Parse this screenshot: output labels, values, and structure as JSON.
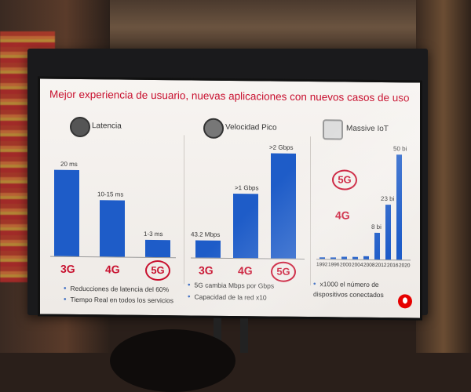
{
  "slide": {
    "title": "Mejor experiencia de usuario, nuevas aplicaciones con nuevos casos de uso"
  },
  "latency": {
    "title": "Latencia",
    "icon": "stopwatch-icon",
    "bars": [
      {
        "tech": "3G",
        "label": "20 ms"
      },
      {
        "tech": "4G",
        "label": "10-15 ms"
      },
      {
        "tech": "5G",
        "label": "1-3 ms"
      }
    ],
    "bullets": [
      "Reducciones de latencia del 60%",
      "Tiempo Real en todos los servicios"
    ]
  },
  "speed": {
    "title": "Velocidad Pico",
    "icon": "speedometer-icon",
    "bars": [
      {
        "tech": "3G",
        "label": "43.2 Mbps"
      },
      {
        "tech": "4G",
        "label": ">1 Gbps"
      },
      {
        "tech": "5G",
        "label": ">2 Gbps"
      }
    ],
    "bullets": [
      "5G cambia Mbps por Gbps",
      "Capacidad de la red x10"
    ]
  },
  "iot": {
    "title": "Massive IoT",
    "icon": "devices-icon",
    "label_4g": "4G",
    "label_5g": "5G",
    "bar_labels": [
      "8 bi",
      "23 bi",
      "50 bi"
    ],
    "years": [
      "1992",
      "1996",
      "2000",
      "2004",
      "2008",
      "2012",
      "2016",
      "2020"
    ],
    "bullets": [
      "x1000 el número de dispositivos conectados"
    ]
  },
  "chart_data": [
    {
      "type": "bar",
      "title": "Latencia",
      "categories": [
        "3G",
        "4G",
        "5G"
      ],
      "values": [
        20,
        12.5,
        2
      ],
      "units": "ms"
    },
    {
      "type": "bar",
      "title": "Velocidad Pico",
      "categories": [
        "3G",
        "4G",
        "5G"
      ],
      "values": [
        0.0432,
        1,
        2
      ],
      "units": "Gbps"
    },
    {
      "type": "bar",
      "title": "Massive IoT",
      "categories": [
        "1992",
        "1996",
        "2000",
        "2004",
        "2008",
        "2012",
        "2016",
        "2020"
      ],
      "values": [
        0.1,
        0.2,
        0.4,
        0.8,
        1.5,
        8,
        23,
        50
      ],
      "units": "bi"
    }
  ],
  "colors": {
    "accent": "#c8102e",
    "bar": "#1e5cc8",
    "bullet": "#3a6bc2"
  }
}
